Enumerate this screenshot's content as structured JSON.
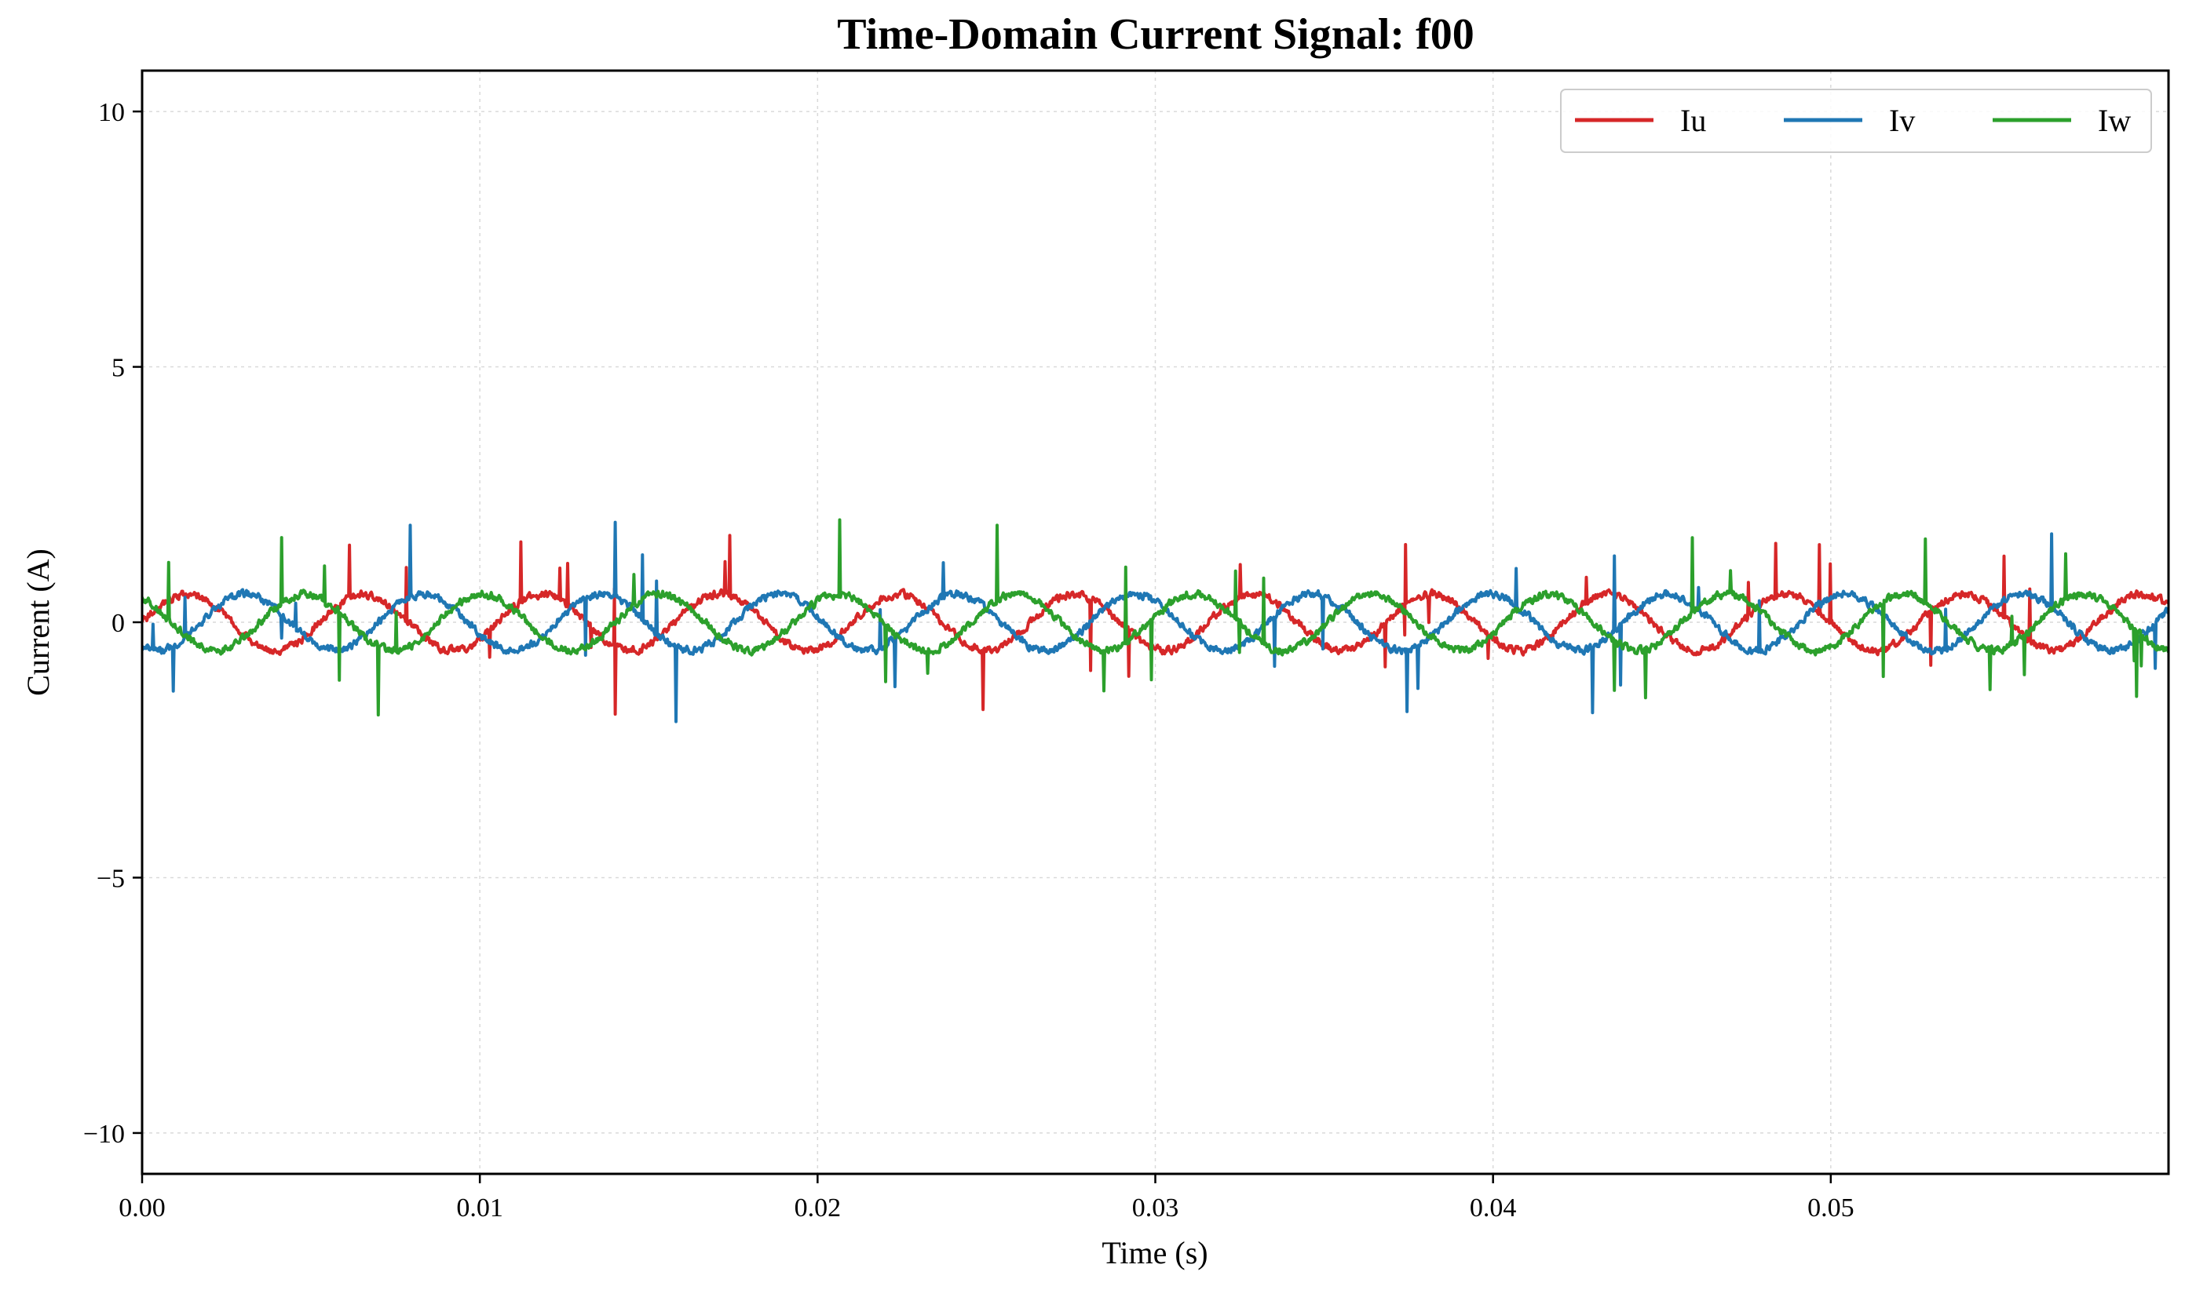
{
  "chart_data": {
    "type": "line",
    "title": "Time-Domain Current Signal: f00",
    "xlabel": "Time (s)",
    "ylabel": "Current (A)",
    "xlim": [
      0.0,
      0.06
    ],
    "ylim": [
      -10.8,
      10.8
    ],
    "xticks": [
      0.0,
      0.01,
      0.02,
      0.03,
      0.04,
      0.05
    ],
    "xtick_labels": [
      "0.00",
      "0.01",
      "0.02",
      "0.03",
      "0.04",
      "0.05"
    ],
    "yticks": [
      10,
      5,
      0,
      -5,
      -10
    ],
    "ytick_labels": [
      "10",
      "5",
      "0",
      "−5",
      "−10"
    ],
    "grid": true,
    "legend_position": "top-right",
    "legend_layout": "single row, 3 columns",
    "signal_model": {
      "description": "three-phase sinusoidal currents with noise and spikes",
      "frequency_hz": 190,
      "amplitude_a": 0.55,
      "phase_offsets_deg": [
        0,
        -120,
        120
      ],
      "noise_a": 0.12,
      "spike_magnitude_a": 1.5
    },
    "series": [
      {
        "name": "Iu",
        "color": "#d62728",
        "phase_deg": 0
      },
      {
        "name": "Iv",
        "color": "#1f77b4",
        "phase_deg": -120
      },
      {
        "name": "Iw",
        "color": "#2ca02c",
        "phase_deg": 120
      }
    ]
  }
}
